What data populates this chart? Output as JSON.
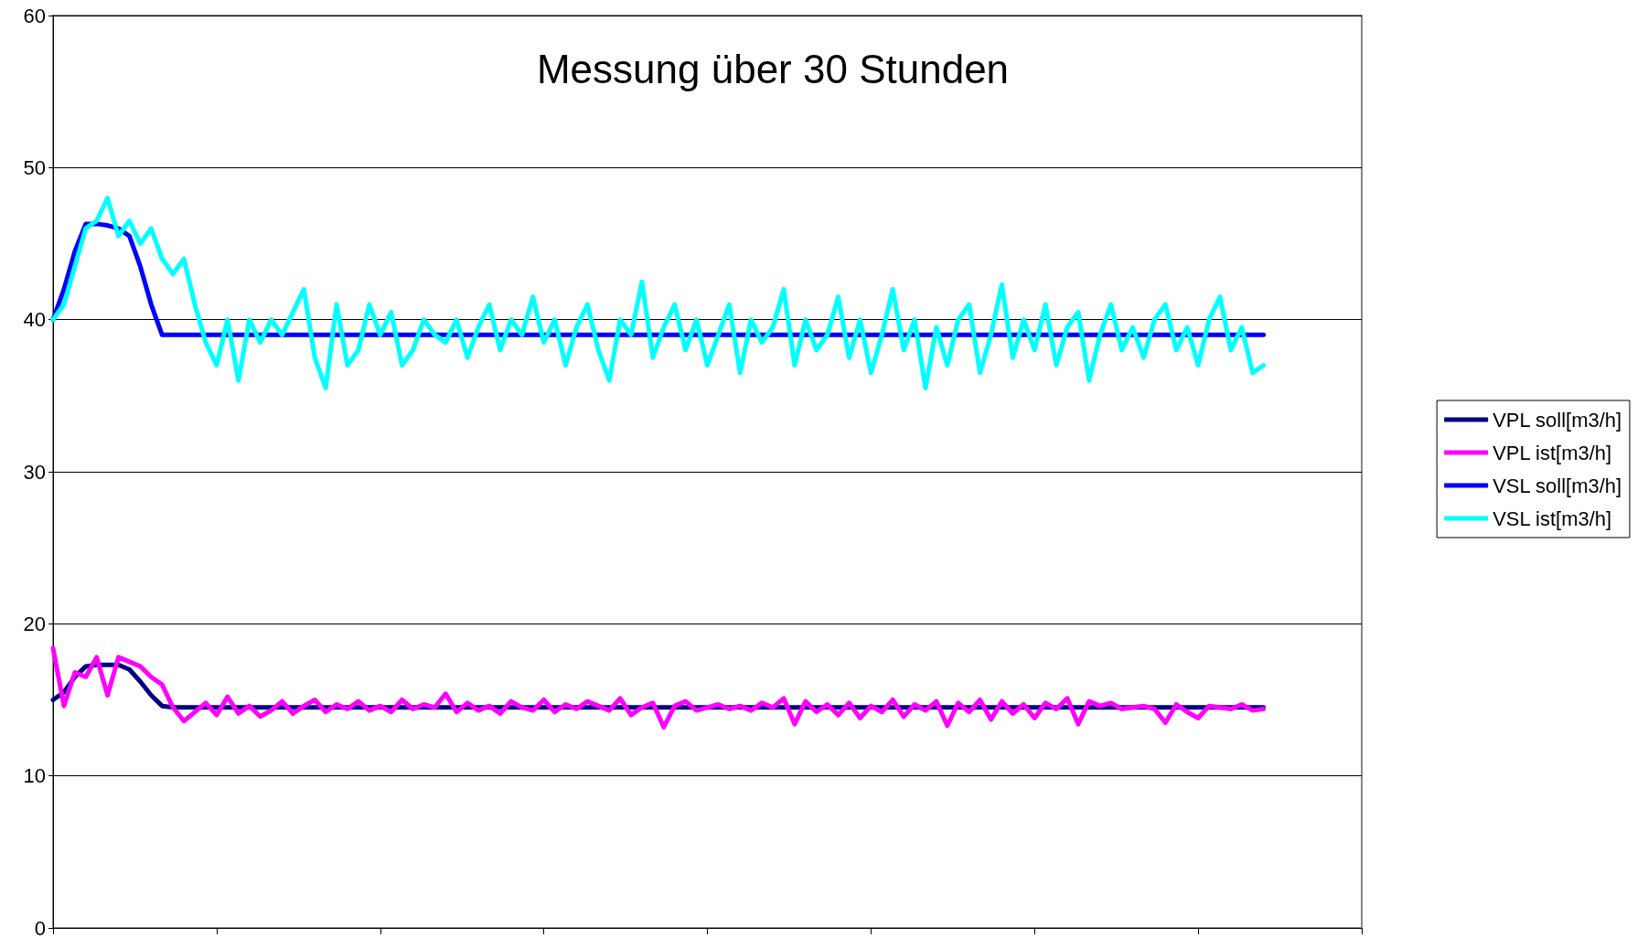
{
  "chart_data": {
    "type": "line",
    "title": "Messung über 30 Stunden",
    "categories": [
      null,
      null,
      null,
      null,
      null,
      null,
      null,
      null,
      null,
      null,
      null,
      null,
      null,
      null,
      null,
      null,
      null,
      null,
      null,
      null,
      null,
      null,
      null,
      null,
      null,
      null,
      null,
      null,
      null,
      null,
      null,
      null,
      null,
      null,
      null,
      null,
      null,
      null,
      null,
      null,
      null,
      null,
      null,
      null,
      null,
      null,
      null,
      null,
      null,
      null,
      null,
      null,
      null,
      null,
      null,
      null,
      null,
      null,
      null,
      null,
      null,
      null,
      null,
      null,
      null,
      null,
      null,
      null,
      null,
      null,
      null,
      null,
      null,
      null,
      null,
      null,
      null,
      null,
      null,
      null,
      null,
      null,
      null,
      null,
      null,
      null,
      null,
      null,
      null,
      null,
      null,
      null,
      null,
      null,
      null,
      null,
      null,
      null,
      null,
      null,
      null,
      null,
      null,
      null,
      null,
      null,
      null,
      null,
      null,
      null,
      null,
      null,
      null,
      null,
      null,
      null,
      null,
      null,
      null,
      null,
      null
    ],
    "ylim": [
      0,
      60
    ],
    "yticks": [
      0,
      10,
      20,
      30,
      40,
      50,
      60
    ],
    "grid": "y",
    "legend": "right",
    "tick_labels": "y",
    "marker": "none",
    "line_style": "solid",
    "series": [
      {
        "name": "VPL soll[m3/h]",
        "color": "#000080",
        "values": [
          15,
          15.5,
          16.5,
          17.2,
          17.3,
          17.3,
          17.3,
          17.0,
          16.2,
          15.3,
          14.6,
          14.5,
          14.5,
          14.5,
          14.5,
          14.5,
          14.5,
          14.5,
          14.5,
          14.5,
          14.5,
          14.5,
          14.5,
          14.5,
          14.5,
          14.5,
          14.5,
          14.5,
          14.5,
          14.5,
          14.5,
          14.5,
          14.5,
          14.5,
          14.5,
          14.5,
          14.5,
          14.5,
          14.5,
          14.5,
          14.5,
          14.5,
          14.5,
          14.5,
          14.5,
          14.5,
          14.5,
          14.5,
          14.5,
          14.5,
          14.5,
          14.5,
          14.5,
          14.5,
          14.5,
          14.5,
          14.5,
          14.5,
          14.5,
          14.5,
          14.5,
          14.5,
          14.5,
          14.5,
          14.5,
          14.5,
          14.5,
          14.5,
          14.5,
          14.5,
          14.5,
          14.5,
          14.5,
          14.5,
          14.5,
          14.5,
          14.5,
          14.5,
          14.5,
          14.5,
          14.5,
          14.5,
          14.5,
          14.5,
          14.5,
          14.5,
          14.5,
          14.5,
          14.5,
          14.5,
          14.5,
          14.5,
          14.5,
          14.5,
          14.5,
          14.5,
          14.5,
          14.5,
          14.5,
          14.5,
          14.5,
          14.5,
          14.5,
          14.5,
          14.5,
          14.5,
          14.5,
          14.5,
          14.5,
          14.5,
          14.5,
          14.5,
          null,
          null,
          null,
          null,
          null,
          null,
          null,
          null,
          null
        ]
      },
      {
        "name": "VPL ist[m3/h]",
        "color": "#ff00ff",
        "values": [
          18.4,
          14.6,
          16.8,
          16.5,
          17.8,
          15.3,
          17.8,
          17.5,
          17.2,
          16.5,
          16.0,
          14.5,
          13.6,
          14.2,
          14.8,
          14.0,
          15.2,
          14.1,
          14.6,
          13.9,
          14.3,
          14.9,
          14.1,
          14.6,
          15.0,
          14.2,
          14.7,
          14.4,
          14.9,
          14.3,
          14.6,
          14.2,
          15.0,
          14.4,
          14.7,
          14.5,
          15.4,
          14.2,
          14.8,
          14.3,
          14.6,
          14.1,
          14.9,
          14.5,
          14.3,
          15.0,
          14.2,
          14.7,
          14.4,
          14.9,
          14.6,
          14.3,
          15.1,
          14.0,
          14.5,
          14.8,
          13.2,
          14.6,
          14.9,
          14.3,
          14.5,
          14.7,
          14.4,
          14.6,
          14.3,
          14.8,
          14.5,
          15.1,
          13.4,
          14.9,
          14.2,
          14.7,
          14.0,
          14.8,
          13.8,
          14.6,
          14.2,
          15.0,
          13.9,
          14.7,
          14.3,
          14.9,
          13.3,
          14.8,
          14.2,
          15.0,
          13.7,
          14.9,
          14.1,
          14.7,
          13.8,
          14.8,
          14.4,
          15.1,
          13.4,
          14.9,
          14.6,
          14.8,
          14.4,
          14.5,
          14.6,
          14.4,
          13.5,
          14.7,
          14.2,
          13.8,
          14.6,
          14.5,
          14.4,
          14.7,
          14.3,
          14.4,
          null,
          null,
          null,
          null,
          null,
          null,
          null,
          null,
          null
        ]
      },
      {
        "name": "VSL soll[m3/h]",
        "color": "#0000ff",
        "values": [
          40,
          42,
          44.5,
          46.3,
          46.3,
          46.2,
          46,
          45.5,
          43.5,
          41,
          39,
          39,
          39,
          39,
          39,
          39,
          39,
          39,
          39,
          39,
          39,
          39,
          39,
          39,
          39,
          39,
          39,
          39,
          39,
          39,
          39,
          39,
          39,
          39,
          39,
          39,
          39,
          39,
          39,
          39,
          39,
          39,
          39,
          39,
          39,
          39,
          39,
          39,
          39,
          39,
          39,
          39,
          39,
          39,
          39,
          39,
          39,
          39,
          39,
          39,
          39,
          39,
          39,
          39,
          39,
          39,
          39,
          39,
          39,
          39,
          39,
          39,
          39,
          39,
          39,
          39,
          39,
          39,
          39,
          39,
          39,
          39,
          39,
          39,
          39,
          39,
          39,
          39,
          39,
          39,
          39,
          39,
          39,
          39,
          39,
          39,
          39,
          39,
          39,
          39,
          39,
          39,
          39,
          39,
          39,
          39,
          39,
          39,
          39,
          39,
          39,
          39,
          null,
          null,
          null,
          null,
          null,
          null,
          null,
          null,
          null
        ]
      },
      {
        "name": "VSL ist[m3/h]",
        "color": "#00ffff",
        "values": [
          40,
          41,
          43.5,
          46,
          46.5,
          48,
          45.5,
          46.5,
          45,
          46,
          44,
          43,
          44,
          41,
          38.5,
          37,
          40,
          36,
          40,
          38.5,
          40,
          39,
          40.5,
          42,
          37.5,
          35.5,
          41,
          37,
          38,
          41,
          39,
          40.5,
          37,
          38,
          40,
          39,
          38.5,
          40,
          37.5,
          39.5,
          41,
          38,
          40,
          39,
          41.5,
          38.5,
          40,
          37,
          39.5,
          41,
          38,
          36,
          40,
          39,
          42.5,
          37.5,
          39.5,
          41,
          38,
          40,
          37,
          39,
          41,
          36.5,
          40,
          38.5,
          39.5,
          42,
          37,
          40,
          38,
          39,
          41.5,
          37.5,
          40,
          36.5,
          39,
          42,
          38,
          40,
          35.5,
          39.5,
          37,
          40,
          41,
          36.5,
          39,
          42.3,
          37.5,
          40,
          38,
          41,
          37,
          39.5,
          40.5,
          36,
          39,
          41,
          38,
          39.5,
          37.5,
          40,
          41,
          38,
          39.5,
          37,
          40,
          41.5,
          38,
          39.5,
          36.5,
          37,
          null,
          null,
          null,
          null,
          null,
          null,
          null,
          null,
          null
        ]
      }
    ]
  }
}
